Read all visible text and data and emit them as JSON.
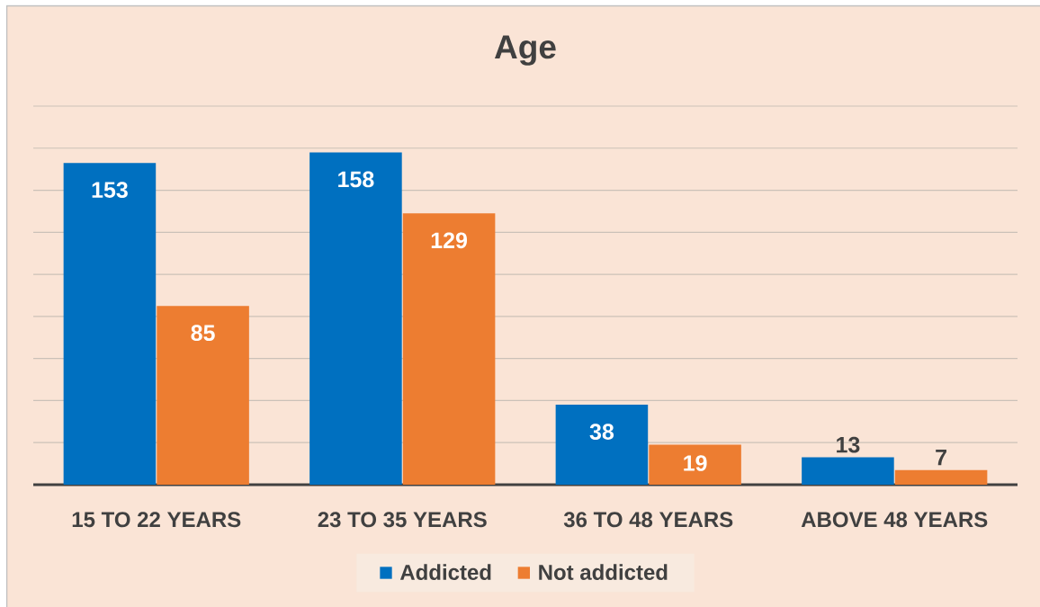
{
  "chart_data": {
    "type": "bar",
    "title": "Age",
    "categories": [
      "15 TO 22 YEARS",
      "23 TO 35 YEARS",
      "36 TO 48 YEARS",
      "ABOVE 48 YEARS"
    ],
    "series": [
      {
        "name": "Addicted",
        "color": "#0070c0",
        "values": [
          153,
          158,
          38,
          13
        ]
      },
      {
        "name": "Not addicted",
        "color": "#ed7d31",
        "values": [
          85,
          129,
          19,
          7
        ]
      }
    ],
    "ylim": [
      0,
      180
    ],
    "yticks": [
      {
        "value": 0,
        "label": null
      },
      {
        "value": 20,
        "label": null
      },
      {
        "value": 40,
        "label": null
      },
      {
        "value": 60,
        "label": null
      },
      {
        "value": 80,
        "label": null
      },
      {
        "value": 100,
        "label": null
      },
      {
        "value": 120,
        "label": null
      },
      {
        "value": 140,
        "label": null
      },
      {
        "value": 160,
        "label": null
      },
      {
        "value": 180,
        "label": null
      }
    ],
    "grid": "y",
    "legend": "bottom",
    "data_labels": true,
    "tick_labels": "x"
  }
}
